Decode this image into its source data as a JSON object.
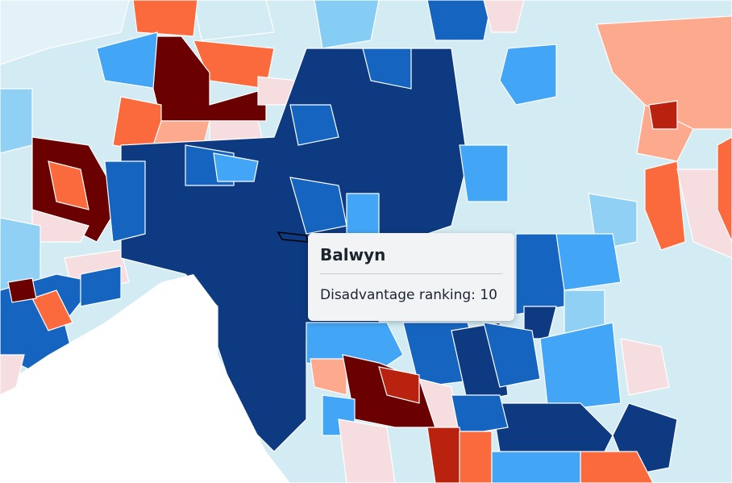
{
  "tooltip": {
    "title": "Balwyn",
    "label": "Disadvantage ranking:",
    "value": 10
  }
}
